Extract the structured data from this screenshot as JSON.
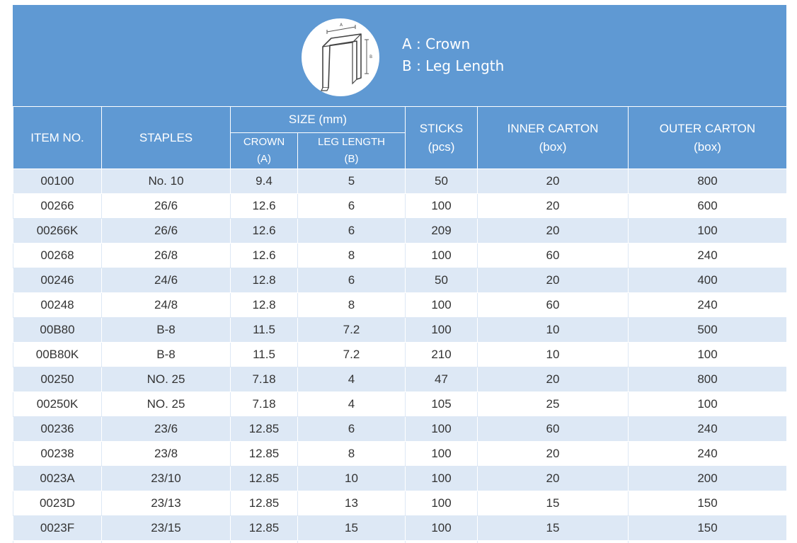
{
  "diagram": {
    "label_a": "A",
    "label_b": "B",
    "legend_a": "A : Crown",
    "legend_b": "B : Leg Length"
  },
  "header": {
    "item_no": "ITEM NO.",
    "staples": "STAPLES",
    "size": "SIZE (mm)",
    "crown": "CROWN",
    "crown_sub": "(A)",
    "leg_length": "LEG LENGTH",
    "leg_length_sub": "(B)",
    "sticks": "STICKS",
    "sticks_sub": "(pcs)",
    "inner_carton": "INNER CARTON",
    "inner_carton_sub": "(box)",
    "outer_carton": "OUTER CARTON",
    "outer_carton_sub": "(box)"
  },
  "rows": [
    [
      "00100",
      "No. 10",
      "9.4",
      "5",
      "50",
      "20",
      "800"
    ],
    [
      "00266",
      "26/6",
      "12.6",
      "6",
      "100",
      "20",
      "600"
    ],
    [
      "00266K",
      "26/6",
      "12.6",
      "6",
      "209",
      "20",
      "100"
    ],
    [
      "00268",
      "26/8",
      "12.6",
      "8",
      "100",
      "60",
      "240"
    ],
    [
      "00246",
      "24/6",
      "12.8",
      "6",
      "50",
      "20",
      "400"
    ],
    [
      "00248",
      "24/8",
      "12.8",
      "8",
      "100",
      "60",
      "240"
    ],
    [
      "00B80",
      "B-8",
      "11.5",
      "7.2",
      "100",
      "10",
      "500"
    ],
    [
      "00B80K",
      "B-8",
      "11.5",
      "7.2",
      "210",
      "10",
      "100"
    ],
    [
      "00250",
      "NO. 25",
      "7.18",
      "4",
      "47",
      "20",
      "800"
    ],
    [
      "00250K",
      "NO. 25",
      "7.18",
      "4",
      "105",
      "25",
      "100"
    ],
    [
      "00236",
      "23/6",
      "12.85",
      "6",
      "100",
      "60",
      "240"
    ],
    [
      "00238",
      "23/8",
      "12.85",
      "8",
      "100",
      "20",
      "240"
    ],
    [
      "0023A",
      "23/10",
      "12.85",
      "10",
      "100",
      "20",
      "200"
    ],
    [
      "0023D",
      "23/13",
      "12.85",
      "13",
      "100",
      "15",
      "150"
    ],
    [
      "0023F",
      "23/15",
      "12.85",
      "15",
      "100",
      "15",
      "150"
    ],
    [
      "",
      "",
      "",
      "",
      "",
      "",
      ""
    ]
  ],
  "colors": {
    "header_blue": "#5f99d3",
    "row_stripe": "#dde8f5",
    "text": "#333333"
  }
}
